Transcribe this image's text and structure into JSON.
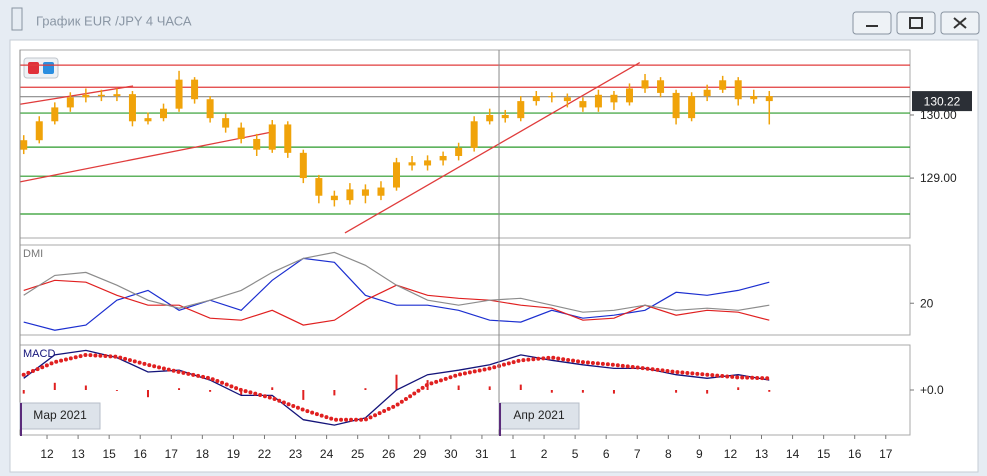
{
  "window": {
    "title": "График EUR /JPY  4 ЧАСА"
  },
  "chart_data": [
    {
      "type": "candlestick",
      "color": "#f0a30a",
      "x": [
        -0.75,
        -0.25,
        0.25,
        0.75,
        1.25,
        1.75,
        2.25,
        2.75,
        3.25,
        3.75,
        4.25,
        4.75,
        5.25,
        5.75,
        6.25,
        6.75,
        7.25,
        7.75,
        8.25,
        8.75,
        9.25,
        9.75,
        10.25,
        10.75,
        11.25,
        11.75,
        12.25,
        12.75,
        13.25,
        13.75,
        14.25,
        14.75,
        15.25,
        15.75,
        16.25,
        16.75,
        17.25,
        17.75,
        18.25,
        18.75,
        19.25,
        19.75,
        20.25,
        20.75,
        21.25,
        21.75,
        22.25,
        22.75,
        23.25
      ],
      "open": [
        129.45,
        129.6,
        129.9,
        130.12,
        130.28,
        130.32,
        130.3,
        130.33,
        129.9,
        129.95,
        130.1,
        130.56,
        130.25,
        129.95,
        129.8,
        129.62,
        129.45,
        129.85,
        129.4,
        129.0,
        128.72,
        128.65,
        128.82,
        128.72,
        128.85,
        129.25,
        129.2,
        129.28,
        129.35,
        129.48,
        129.9,
        130.0,
        129.95,
        130.22,
        130.3,
        130.28,
        130.22,
        130.12,
        130.32,
        130.2,
        130.42,
        130.55,
        130.35,
        129.95,
        130.3,
        130.4,
        130.55,
        130.25,
        130.3
      ],
      "high": [
        129.68,
        129.98,
        130.2,
        130.36,
        130.42,
        130.4,
        130.42,
        130.38,
        130.04,
        130.18,
        130.7,
        130.6,
        130.3,
        130.02,
        129.88,
        129.7,
        129.92,
        129.9,
        129.45,
        129.05,
        128.8,
        128.92,
        128.9,
        128.95,
        129.32,
        129.35,
        129.36,
        129.42,
        129.56,
        129.98,
        130.1,
        130.08,
        130.3,
        130.38,
        130.36,
        130.34,
        130.28,
        130.4,
        130.38,
        130.5,
        130.65,
        130.6,
        130.4,
        130.36,
        130.48,
        130.62,
        130.6,
        130.4,
        130.38
      ],
      "low": [
        129.38,
        129.55,
        129.85,
        130.05,
        130.2,
        130.22,
        130.22,
        129.82,
        129.85,
        129.9,
        130.05,
        130.18,
        129.88,
        129.72,
        129.55,
        129.35,
        129.4,
        129.32,
        128.92,
        128.6,
        128.55,
        128.58,
        128.6,
        128.65,
        128.8,
        129.12,
        129.12,
        129.2,
        129.28,
        129.42,
        129.85,
        129.88,
        129.9,
        130.15,
        130.2,
        130.12,
        130.05,
        130.05,
        130.08,
        130.15,
        130.35,
        130.28,
        129.85,
        129.9,
        130.22,
        130.35,
        130.15,
        130.18,
        129.85
      ],
      "close": [
        129.6,
        129.9,
        130.12,
        130.28,
        130.32,
        130.3,
        130.33,
        129.9,
        129.95,
        130.1,
        130.56,
        130.25,
        129.95,
        129.8,
        129.62,
        129.45,
        129.85,
        129.4,
        129.0,
        128.72,
        128.65,
        128.82,
        128.72,
        128.85,
        129.25,
        129.2,
        129.28,
        129.35,
        129.48,
        129.9,
        130.0,
        129.95,
        130.22,
        130.3,
        130.28,
        130.22,
        130.12,
        130.32,
        130.2,
        130.42,
        130.55,
        130.35,
        129.95,
        130.3,
        130.4,
        130.55,
        130.25,
        130.3,
        130.22
      ],
      "xlim": [
        -0.87,
        27.78
      ],
      "ylim": [
        128.05,
        131.03
      ],
      "yticks": [
        {
          "value": 130,
          "label": "130.00"
        },
        {
          "value": 129,
          "label": "129.00"
        }
      ],
      "last_price": 130.22,
      "levels": [
        {
          "value": 130.79,
          "color": "#e03c3c"
        },
        {
          "value": 130.44,
          "color": "#e03c3c"
        },
        {
          "value": 130.29,
          "color": "#8a8a8a"
        },
        {
          "value": 130.03,
          "color": "#2a9a2a"
        },
        {
          "value": 129.49,
          "color": "#2a9a2a"
        },
        {
          "value": 129.03,
          "color": "#2a9a2a"
        },
        {
          "value": 128.43,
          "color": "#2a9a2a"
        }
      ],
      "trendlines": [
        {
          "x": [
            -0.87,
            2.77
          ],
          "y": [
            130.17,
            130.46
          ],
          "color": "#e03c3c"
        },
        {
          "x": [
            -0.87,
            7.24
          ],
          "y": [
            128.94,
            129.73
          ],
          "color": "#e03c3c"
        },
        {
          "x": [
            9.59,
            19.08
          ],
          "y": [
            128.13,
            130.83
          ],
          "color": "#e03c3c"
        }
      ]
    },
    {
      "type": "line",
      "label": "DMI",
      "x": [
        -0.75,
        0.25,
        1.25,
        2.25,
        3.25,
        4.25,
        5.25,
        6.25,
        7.25,
        8.25,
        9.25,
        10.25,
        11.25,
        12.25,
        13.25,
        14.25,
        15.25,
        16.25,
        17.25,
        18.25,
        19.25,
        20.25,
        21.25,
        22.25,
        23.25
      ],
      "xlim": [
        -0.87,
        27.78
      ],
      "ylim": [
        2,
        53
      ],
      "yticks": [
        20
      ],
      "series": [
        {
          "color": "#1c2fd0",
          "values": [
            9.3,
            4.7,
            7.6,
            21.7,
            27.3,
            16.0,
            21.7,
            16.0,
            33.0,
            45.4,
            43.2,
            24.5,
            18.9,
            18.9,
            16.0,
            10.4,
            9.3,
            16.0,
            11.5,
            13.2,
            16.0,
            26.2,
            24.5,
            27.3,
            31.9
          ]
        },
        {
          "color": "#e02020",
          "values": [
            27.3,
            33.0,
            31.9,
            24.5,
            18.9,
            18.9,
            11.5,
            10.4,
            16.0,
            7.6,
            10.4,
            21.7,
            30.2,
            24.5,
            22.8,
            21.7,
            18.9,
            17.2,
            10.4,
            11.5,
            18.9,
            13.2,
            16.0,
            14.9,
            10.4
          ]
        },
        {
          "color": "#8c8c8c",
          "values": [
            24.5,
            35.8,
            37.5,
            30.2,
            21.7,
            17.2,
            21.7,
            27.3,
            37.5,
            45.4,
            48.8,
            41.5,
            30.2,
            21.7,
            18.9,
            21.7,
            22.8,
            18.9,
            14.9,
            16.0,
            18.9,
            16.0,
            17.2,
            16.0,
            18.9
          ]
        }
      ]
    },
    {
      "type": "macd",
      "label": "MACD",
      "x": [
        -0.75,
        0.25,
        1.25,
        2.25,
        3.25,
        4.25,
        5.25,
        6.25,
        7.25,
        8.25,
        9.25,
        10.25,
        11.25,
        12.25,
        13.25,
        14.25,
        15.25,
        16.25,
        17.25,
        18.25,
        19.25,
        20.25,
        21.25,
        22.25,
        23.25
      ],
      "xlim": [
        -0.87,
        27.78
      ],
      "ylim": [
        -0.5,
        0.5
      ],
      "yticks": [
        {
          "value": 0,
          "label": "+0.0"
        }
      ],
      "macd": {
        "color": "#14147a",
        "values": [
          0.13,
          0.39,
          0.44,
          0.36,
          0.2,
          0.22,
          0.11,
          -0.06,
          -0.06,
          -0.33,
          -0.39,
          -0.31,
          0.0,
          0.17,
          0.22,
          0.28,
          0.39,
          0.33,
          0.28,
          0.24,
          0.24,
          0.17,
          0.13,
          0.17,
          0.11
        ]
      },
      "signal": {
        "color": "#e02020",
        "values": [
          0.17,
          0.31,
          0.39,
          0.37,
          0.28,
          0.2,
          0.13,
          0.0,
          -0.09,
          -0.22,
          -0.33,
          -0.33,
          -0.17,
          0.06,
          0.17,
          0.24,
          0.33,
          0.36,
          0.31,
          0.28,
          0.24,
          0.2,
          0.17,
          0.14,
          0.13
        ]
      },
      "histogram": {
        "color": "#e02020",
        "values": [
          -0.04,
          0.08,
          0.05,
          -0.01,
          -0.08,
          0.02,
          -0.02,
          -0.06,
          0.03,
          -0.11,
          -0.06,
          0.02,
          0.17,
          0.11,
          0.05,
          0.04,
          0.06,
          -0.03,
          -0.03,
          -0.04,
          0,
          -0.03,
          -0.04,
          0.03,
          -0.02
        ]
      },
      "month_markers": [
        {
          "label": "Мар 2021",
          "x": -0.87
        },
        {
          "label": "Апр 2021",
          "x": 14.55
        }
      ],
      "xticks": [
        {
          "value": 0,
          "label": "12"
        },
        {
          "value": 1,
          "label": "13"
        },
        {
          "value": 2,
          "label": "15"
        },
        {
          "value": 3,
          "label": "16"
        },
        {
          "value": 4,
          "label": "17"
        },
        {
          "value": 5,
          "label": "18"
        },
        {
          "value": 6,
          "label": "19"
        },
        {
          "value": 7,
          "label": "22"
        },
        {
          "value": 8,
          "label": "23"
        },
        {
          "value": 9,
          "label": "24"
        },
        {
          "value": 10,
          "label": "25"
        },
        {
          "value": 11,
          "label": "26"
        },
        {
          "value": 12,
          "label": "29"
        },
        {
          "value": 13,
          "label": "30"
        },
        {
          "value": 14,
          "label": "31"
        },
        {
          "value": 15,
          "label": "1"
        },
        {
          "value": 16,
          "label": "2"
        },
        {
          "value": 17,
          "label": "5"
        },
        {
          "value": 18,
          "label": "6"
        },
        {
          "value": 19,
          "label": "7"
        },
        {
          "value": 20,
          "label": "8"
        },
        {
          "value": 21,
          "label": "9"
        },
        {
          "value": 22,
          "label": "12"
        },
        {
          "value": 23,
          "label": "13"
        },
        {
          "value": 24,
          "label": "14"
        },
        {
          "value": 25,
          "label": "15"
        },
        {
          "value": 26,
          "label": "16"
        },
        {
          "value": 27,
          "label": "17"
        }
      ]
    }
  ]
}
